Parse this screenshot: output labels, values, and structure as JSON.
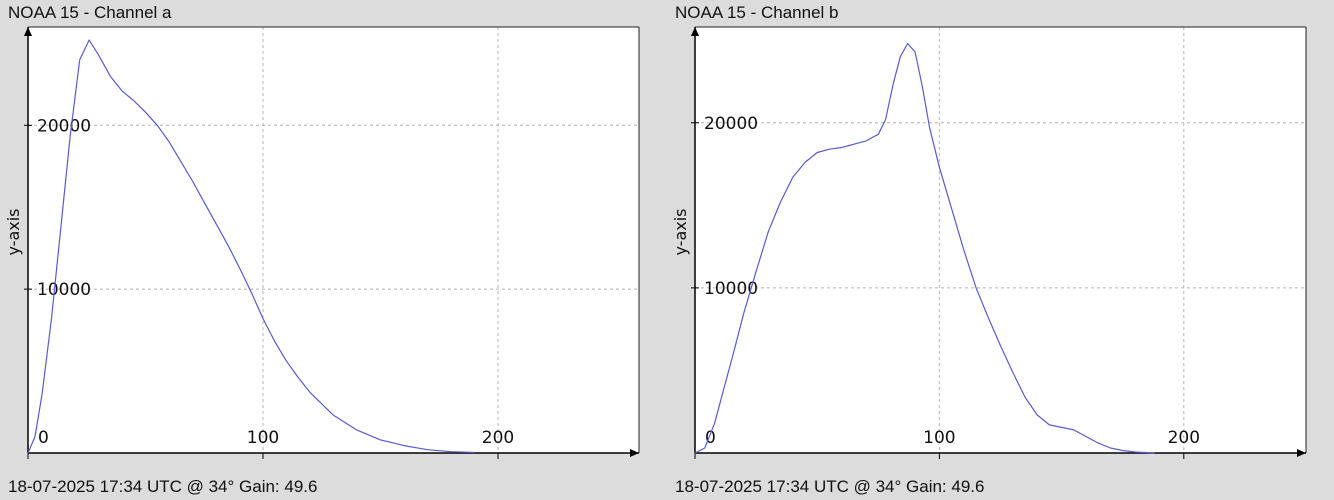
{
  "chart_data": [
    {
      "type": "line",
      "title": "NOAA 15 - Channel a",
      "footer": "18-07-2025 17:34 UTC @ 34° Gain: 49.6",
      "xlabel": "",
      "ylabel": "y-axis",
      "xlim": [
        0,
        260
      ],
      "ylim": [
        0,
        26000
      ],
      "x_ticks": [
        0,
        100,
        200
      ],
      "y_ticks": [
        10000,
        20000
      ],
      "grid": true,
      "line_color": "#5a5ad2",
      "series": [
        {
          "x": [
            0,
            3,
            6,
            10,
            14,
            18,
            22,
            26,
            30,
            35,
            40,
            45,
            50,
            55,
            60,
            65,
            70,
            75,
            80,
            85,
            90,
            95,
            100,
            105,
            110,
            115,
            120,
            130,
            140,
            150,
            160,
            170,
            180,
            190
          ],
          "values": [
            0,
            1000,
            3600,
            8200,
            13800,
            19400,
            24000,
            25200,
            24300,
            23000,
            22100,
            21500,
            20800,
            20000,
            19000,
            17800,
            16600,
            15300,
            14000,
            12700,
            11300,
            9800,
            8200,
            6800,
            5600,
            4600,
            3700,
            2300,
            1400,
            800,
            450,
            200,
            80,
            30
          ]
        }
      ]
    },
    {
      "type": "line",
      "title": "NOAA 15 - Channel b",
      "footer": "18-07-2025 17:34 UTC @ 34° Gain: 49.6",
      "xlabel": "",
      "ylabel": "y-axis",
      "xlim": [
        0,
        250
      ],
      "ylim": [
        0,
        25800
      ],
      "x_ticks": [
        0,
        100,
        200
      ],
      "y_ticks": [
        10000,
        20000
      ],
      "grid": true,
      "line_color": "#5a5ad2",
      "series": [
        {
          "x": [
            0,
            4,
            8,
            12,
            16,
            20,
            25,
            30,
            35,
            40,
            45,
            50,
            55,
            60,
            65,
            70,
            75,
            78,
            81,
            84,
            87,
            90,
            93,
            96,
            100,
            105,
            110,
            115,
            120,
            125,
            130,
            135,
            140,
            145,
            150,
            155,
            160,
            165,
            170,
            175,
            180,
            188
          ],
          "values": [
            0,
            300,
            1800,
            4000,
            6200,
            8500,
            11000,
            13400,
            15200,
            16700,
            17600,
            18200,
            18400,
            18500,
            18700,
            18900,
            19300,
            20200,
            22300,
            24000,
            24800,
            24300,
            22200,
            19700,
            17300,
            14800,
            12300,
            10000,
            8200,
            6500,
            4900,
            3400,
            2300,
            1700,
            1550,
            1400,
            1000,
            600,
            300,
            150,
            60,
            0
          ]
        }
      ]
    }
  ]
}
